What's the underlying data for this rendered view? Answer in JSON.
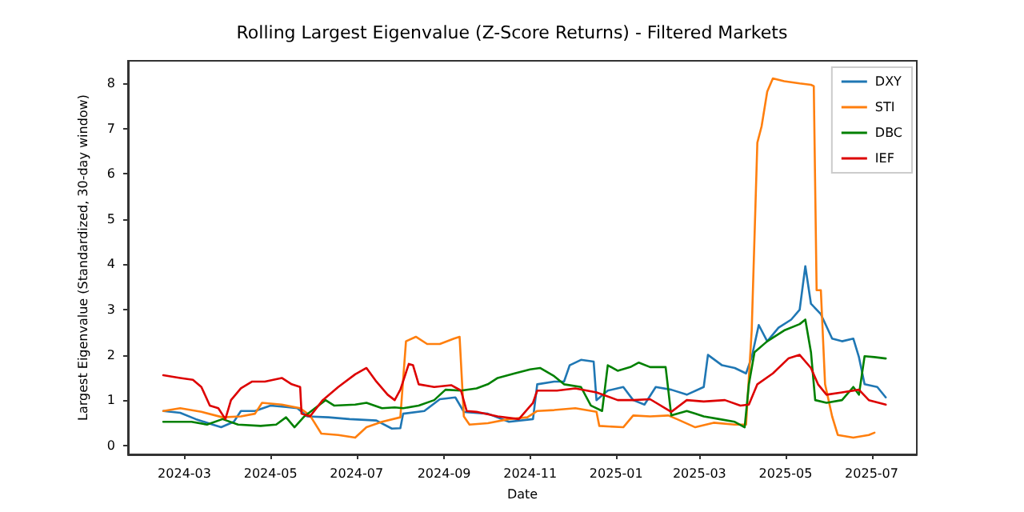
{
  "chart_data": {
    "type": "line",
    "title": "Rolling Largest Eigenvalue (Z-Score Returns) - Filtered Markets",
    "xlabel": "Date",
    "ylabel": "Largest Eigenvalue (Standardized, 30-day window)",
    "xlim": [
      "2024-01-21",
      "2025-08-02"
    ],
    "xticks": [
      "2024-03",
      "2024-05",
      "2024-07",
      "2024-09",
      "2024-11",
      "2025-01",
      "2025-03",
      "2025-05",
      "2025-07"
    ],
    "ylim": [
      -0.2,
      8.5
    ],
    "yticks": [
      0,
      1,
      2,
      3,
      4,
      5,
      6,
      7,
      8
    ],
    "grid": false,
    "legend": "top right",
    "marker": "none",
    "line_style": "solid",
    "series": [
      {
        "name": "DXY",
        "color": "#1f77b4",
        "x": [
          "2024-02-15",
          "2024-02-27",
          "2024-03-09",
          "2024-03-21",
          "2024-03-27",
          "2024-04-05",
          "2024-04-10",
          "2024-04-20",
          "2024-05-01",
          "2024-05-12",
          "2024-05-20",
          "2024-05-27",
          "2024-06-11",
          "2024-06-26",
          "2024-07-15",
          "2024-07-26",
          "2024-08-01",
          "2024-08-03",
          "2024-08-18",
          "2024-08-29",
          "2024-09-09",
          "2024-09-15",
          "2024-10-02",
          "2024-10-17",
          "2024-11-03",
          "2024-11-06",
          "2024-11-18",
          "2024-11-25",
          "2024-11-29",
          "2024-12-07",
          "2024-12-16",
          "2024-12-18",
          "2024-12-26",
          "2025-01-06",
          "2025-01-13",
          "2025-01-21",
          "2025-01-29",
          "2025-02-09",
          "2025-02-20",
          "2025-03-04",
          "2025-03-07",
          "2025-03-17",
          "2025-03-26",
          "2025-04-03",
          "2025-04-07",
          "2025-04-12",
          "2025-04-18",
          "2025-04-26",
          "2025-05-05",
          "2025-05-11",
          "2025-05-15",
          "2025-05-19",
          "2025-05-26",
          "2025-06-03",
          "2025-06-10",
          "2025-06-18",
          "2025-06-22",
          "2025-06-26",
          "2025-07-05",
          "2025-07-11"
        ],
        "values": [
          0.76,
          0.72,
          0.58,
          0.46,
          0.4,
          0.52,
          0.76,
          0.76,
          0.88,
          0.85,
          0.82,
          0.64,
          0.62,
          0.58,
          0.55,
          0.37,
          0.38,
          0.7,
          0.76,
          1.02,
          1.06,
          0.74,
          0.7,
          0.52,
          0.58,
          1.35,
          1.41,
          1.41,
          1.77,
          1.89,
          1.85,
          1.0,
          1.21,
          1.29,
          1.0,
          0.9,
          1.29,
          1.23,
          1.12,
          1.29,
          2.0,
          1.77,
          1.71,
          1.59,
          1.95,
          2.66,
          2.3,
          2.6,
          2.78,
          3.0,
          3.96,
          3.13,
          2.9,
          2.36,
          2.3,
          2.36,
          1.95,
          1.35,
          1.29,
          1.06
        ]
      },
      {
        "name": "STI",
        "color": "#ff7f0e",
        "x": [
          "2024-02-15",
          "2024-02-27",
          "2024-03-13",
          "2024-03-28",
          "2024-04-10",
          "2024-04-20",
          "2024-04-25",
          "2024-05-09",
          "2024-05-22",
          "2024-05-29",
          "2024-06-06",
          "2024-06-18",
          "2024-06-30",
          "2024-07-08",
          "2024-07-19",
          "2024-08-01",
          "2024-08-05",
          "2024-08-12",
          "2024-08-20",
          "2024-08-29",
          "2024-09-08",
          "2024-09-12",
          "2024-09-15",
          "2024-09-19",
          "2024-10-02",
          "2024-10-17",
          "2024-10-30",
          "2024-11-06",
          "2024-11-18",
          "2024-12-03",
          "2024-12-18",
          "2024-12-20",
          "2025-01-06",
          "2025-01-13",
          "2025-01-25",
          "2025-02-07",
          "2025-02-13",
          "2025-02-26",
          "2025-03-11",
          "2025-03-26",
          "2025-04-03",
          "2025-04-07",
          "2025-04-11",
          "2025-04-14",
          "2025-04-18",
          "2025-04-22",
          "2025-04-30",
          "2025-05-11",
          "2025-05-19",
          "2025-05-21",
          "2025-05-23",
          "2025-05-26",
          "2025-05-29",
          "2025-06-03",
          "2025-06-07",
          "2025-06-18",
          "2025-06-29",
          "2025-07-03"
        ],
        "values": [
          0.76,
          0.82,
          0.74,
          0.62,
          0.64,
          0.7,
          0.94,
          0.9,
          0.82,
          0.66,
          0.26,
          0.23,
          0.17,
          0.4,
          0.52,
          0.62,
          2.3,
          2.4,
          2.24,
          2.24,
          2.36,
          2.4,
          0.64,
          0.46,
          0.49,
          0.58,
          0.62,
          0.76,
          0.78,
          0.82,
          0.74,
          0.43,
          0.4,
          0.66,
          0.64,
          0.66,
          0.58,
          0.4,
          0.5,
          0.46,
          0.46,
          2.54,
          6.69,
          7.05,
          7.82,
          8.11,
          8.05,
          8.0,
          7.97,
          7.94,
          3.43,
          3.43,
          1.35,
          0.64,
          0.23,
          0.17,
          0.23,
          0.28
        ]
      },
      {
        "name": "DBC",
        "color": "#008000",
        "x": [
          "2024-02-15",
          "2024-03-06",
          "2024-03-17",
          "2024-03-28",
          "2024-04-08",
          "2024-04-24",
          "2024-05-05",
          "2024-05-12",
          "2024-05-18",
          "2024-05-25",
          "2024-06-04",
          "2024-06-09",
          "2024-06-15",
          "2024-06-30",
          "2024-07-08",
          "2024-07-19",
          "2024-07-28",
          "2024-08-03",
          "2024-08-14",
          "2024-08-25",
          "2024-09-02",
          "2024-09-13",
          "2024-09-24",
          "2024-10-02",
          "2024-10-09",
          "2024-10-21",
          "2024-11-01",
          "2024-11-08",
          "2024-11-18",
          "2024-11-25",
          "2024-12-07",
          "2024-12-14",
          "2024-12-22",
          "2024-12-26",
          "2025-01-02",
          "2025-01-11",
          "2025-01-17",
          "2025-01-25",
          "2025-02-05",
          "2025-02-09",
          "2025-02-20",
          "2025-02-26",
          "2025-03-04",
          "2025-03-15",
          "2025-03-26",
          "2025-04-02",
          "2025-04-05",
          "2025-04-09",
          "2025-04-18",
          "2025-04-30",
          "2025-05-11",
          "2025-05-15",
          "2025-05-19",
          "2025-05-22",
          "2025-05-30",
          "2025-06-10",
          "2025-06-18",
          "2025-06-22",
          "2025-06-26",
          "2025-07-03",
          "2025-07-11"
        ],
        "values": [
          0.52,
          0.52,
          0.46,
          0.58,
          0.46,
          0.43,
          0.46,
          0.62,
          0.4,
          0.64,
          0.88,
          1.0,
          0.88,
          0.9,
          0.94,
          0.82,
          0.84,
          0.82,
          0.88,
          1.0,
          1.23,
          1.21,
          1.26,
          1.35,
          1.49,
          1.59,
          1.68,
          1.71,
          1.53,
          1.35,
          1.29,
          0.88,
          0.76,
          1.77,
          1.65,
          1.73,
          1.83,
          1.73,
          1.73,
          0.66,
          0.76,
          0.7,
          0.64,
          0.58,
          0.52,
          0.4,
          1.35,
          2.06,
          2.3,
          2.54,
          2.68,
          2.78,
          2.06,
          1.0,
          0.94,
          1.0,
          1.29,
          1.12,
          1.97,
          1.95,
          1.92
        ]
      },
      {
        "name": "IEF",
        "color": "#dd0000",
        "x": [
          "2024-02-15",
          "2024-02-27",
          "2024-03-07",
          "2024-03-13",
          "2024-03-19",
          "2024-03-25",
          "2024-03-30",
          "2024-04-03",
          "2024-04-10",
          "2024-04-18",
          "2024-04-27",
          "2024-05-09",
          "2024-05-16",
          "2024-05-22",
          "2024-05-23",
          "2024-05-29",
          "2024-06-07",
          "2024-06-18",
          "2024-06-30",
          "2024-07-08",
          "2024-07-15",
          "2024-07-23",
          "2024-07-28",
          "2024-08-01",
          "2024-08-07",
          "2024-08-10",
          "2024-08-14",
          "2024-08-25",
          "2024-09-06",
          "2024-09-13",
          "2024-09-17",
          "2024-09-24",
          "2024-10-09",
          "2024-10-24",
          "2024-11-03",
          "2024-11-06",
          "2024-11-20",
          "2024-12-03",
          "2024-12-18",
          "2025-01-02",
          "2025-01-13",
          "2025-01-25",
          "2025-02-09",
          "2025-02-20",
          "2025-03-04",
          "2025-03-19",
          "2025-03-30",
          "2025-04-05",
          "2025-04-11",
          "2025-04-22",
          "2025-05-03",
          "2025-05-11",
          "2025-05-19",
          "2025-05-24",
          "2025-05-30",
          "2025-06-10",
          "2025-06-22",
          "2025-06-29",
          "2025-07-11"
        ],
        "values": [
          1.55,
          1.49,
          1.45,
          1.29,
          0.88,
          0.82,
          0.58,
          1.0,
          1.26,
          1.41,
          1.41,
          1.49,
          1.35,
          1.29,
          0.7,
          0.64,
          1.0,
          1.29,
          1.57,
          1.71,
          1.41,
          1.12,
          1.0,
          1.23,
          1.8,
          1.77,
          1.35,
          1.29,
          1.33,
          1.21,
          0.76,
          0.74,
          0.64,
          0.58,
          0.94,
          1.21,
          1.21,
          1.26,
          1.17,
          1.0,
          1.0,
          1.02,
          0.74,
          1.0,
          0.97,
          1.0,
          0.88,
          0.9,
          1.35,
          1.59,
          1.92,
          2.0,
          1.71,
          1.35,
          1.12,
          1.17,
          1.23,
          1.0,
          0.9
        ]
      }
    ]
  }
}
